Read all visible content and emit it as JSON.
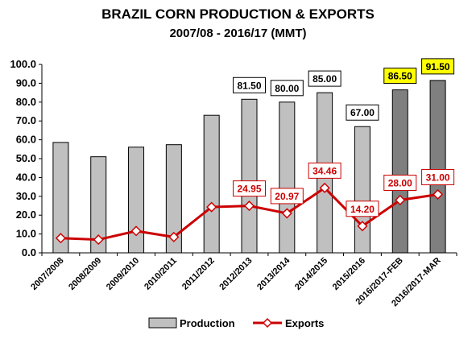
{
  "chart_data": {
    "type": "bar",
    "title": "BRAZIL CORN PRODUCTION & EXPORTS",
    "subtitle": "2007/08 - 2016/17 (MMT)",
    "categories": [
      "2007/2008",
      "2008/2009",
      "2009/2010",
      "2010/2011",
      "2011/2012",
      "2012/2013",
      "2013/2014",
      "2014/2015",
      "2015/2016",
      "2016/2017-FEB",
      "2016/2017-MAR"
    ],
    "series": [
      {
        "name": "Production",
        "type": "bar",
        "values": [
          58.6,
          51.0,
          56.1,
          57.4,
          73.0,
          81.5,
          80.0,
          85.0,
          67.0,
          86.5,
          91.5
        ],
        "labels": [
          "",
          "",
          "",
          "",
          "",
          "81.50",
          "80.00",
          "85.00",
          "67.00",
          "86.50",
          "91.50"
        ],
        "color": "#c0c0c0",
        "highlight_color": "#7f7f7f",
        "highlighted": [
          false,
          false,
          false,
          false,
          false,
          false,
          false,
          false,
          false,
          true,
          true
        ],
        "label_bg": [
          "",
          "",
          "",
          "",
          "",
          "#ffffff",
          "#ffffff",
          "#ffffff",
          "#ffffff",
          "#ffff00",
          "#ffff00"
        ]
      },
      {
        "name": "Exports",
        "type": "line",
        "values": [
          7.8,
          7.0,
          11.6,
          8.4,
          24.3,
          24.95,
          20.97,
          34.46,
          14.2,
          28.0,
          31.0
        ],
        "labels": [
          "",
          "",
          "",
          "",
          "",
          "24.95",
          "20.97",
          "34.46",
          "14.20",
          "28.00",
          "31.00"
        ],
        "color": "#cc0000"
      }
    ],
    "yticks": [
      "0.0",
      "10.0",
      "20.0",
      "30.0",
      "40.0",
      "50.0",
      "60.0",
      "70.0",
      "80.0",
      "90.0",
      "100.0"
    ],
    "ylim": [
      0,
      100
    ],
    "grid": false,
    "legend": "bottom"
  }
}
